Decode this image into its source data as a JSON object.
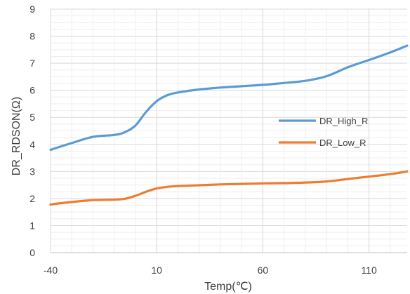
{
  "chart_data": {
    "type": "line",
    "title": "",
    "xlabel": "Temp(℃)",
    "ylabel": "DR_RDSON(Ω)",
    "xlim": [
      -40,
      128
    ],
    "ylim": [
      0,
      9
    ],
    "xticks": [
      -40,
      10,
      60,
      110
    ],
    "yticks": [
      0,
      1,
      2,
      3,
      4,
      5,
      6,
      7,
      8,
      9
    ],
    "grid": "horizontal major and minor lines, vertical lines at x ticks",
    "legend": "center-right",
    "series": [
      {
        "name": "DR_High_R",
        "color": "#5B9BD5",
        "x": [
          -40,
          -30,
          -20,
          -10,
          -5,
          0,
          5,
          10,
          15,
          20,
          30,
          40,
          50,
          60,
          70,
          80,
          90,
          100,
          110,
          120,
          128
        ],
        "y": [
          3.8,
          4.05,
          4.28,
          4.35,
          4.45,
          4.7,
          5.2,
          5.6,
          5.82,
          5.92,
          6.03,
          6.1,
          6.15,
          6.2,
          6.27,
          6.35,
          6.52,
          6.85,
          7.12,
          7.4,
          7.65
        ]
      },
      {
        "name": "DR_Low_R",
        "color": "#ED7D31",
        "x": [
          -40,
          -30,
          -20,
          -10,
          -5,
          0,
          5,
          10,
          15,
          20,
          30,
          40,
          50,
          60,
          70,
          80,
          90,
          100,
          110,
          120,
          128
        ],
        "y": [
          1.78,
          1.87,
          1.94,
          1.96,
          1.99,
          2.1,
          2.25,
          2.37,
          2.43,
          2.46,
          2.49,
          2.52,
          2.54,
          2.56,
          2.57,
          2.59,
          2.63,
          2.72,
          2.81,
          2.9,
          3.0
        ]
      }
    ]
  }
}
